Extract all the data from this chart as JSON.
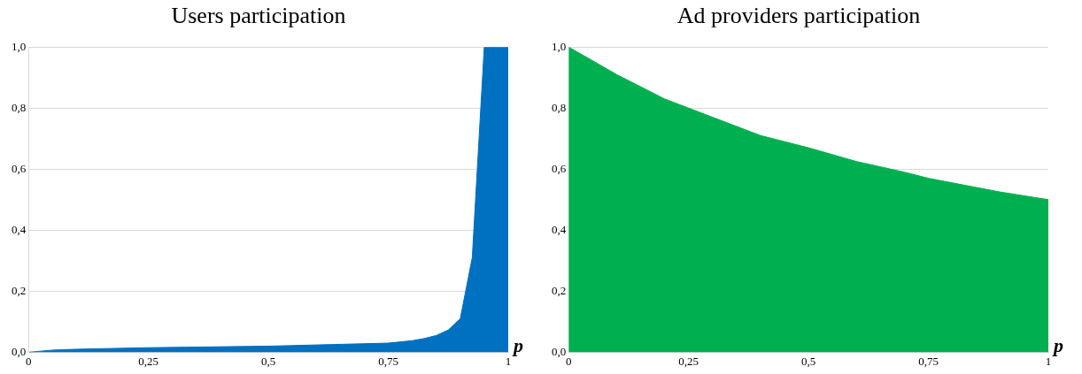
{
  "chart_data": [
    {
      "type": "area",
      "title": "Users participation",
      "xlabel": "p",
      "color": "#0070c0",
      "x": [
        0,
        0.05,
        0.1,
        0.25,
        0.5,
        0.75,
        0.8,
        0.825,
        0.85,
        0.875,
        0.9,
        0.925,
        0.95,
        1
      ],
      "values": [
        0,
        0.007,
        0.01,
        0.015,
        0.02,
        0.03,
        0.038,
        0.045,
        0.055,
        0.073,
        0.11,
        0.31,
        1.0,
        1.0
      ],
      "xlim": [
        0,
        1
      ],
      "ylim": [
        0,
        1
      ],
      "xticks": [
        {
          "value": 0,
          "label": "0"
        },
        {
          "value": 0.25,
          "label": "0,25"
        },
        {
          "value": 0.5,
          "label": "0,5"
        },
        {
          "value": 0.75,
          "label": "0,75"
        },
        {
          "value": 1,
          "label": "1"
        }
      ],
      "yticks": [
        {
          "value": 0,
          "label": "0,0"
        },
        {
          "value": 0.2,
          "label": "0,2"
        },
        {
          "value": 0.4,
          "label": "0,4"
        },
        {
          "value": 0.6,
          "label": "0,6"
        },
        {
          "value": 0.8,
          "label": "0,8"
        },
        {
          "value": 1,
          "label": "1,0"
        }
      ],
      "grid": "y",
      "legend": false
    },
    {
      "type": "area",
      "title": "Ad providers participation",
      "xlabel": "p",
      "color": "#00b050",
      "x": [
        0,
        0.1,
        0.2,
        0.25,
        0.3,
        0.4,
        0.5,
        0.6,
        0.7,
        0.75,
        0.8,
        0.9,
        1
      ],
      "values": [
        1.0,
        0.91,
        0.83,
        0.8,
        0.77,
        0.71,
        0.67,
        0.625,
        0.59,
        0.57,
        0.555,
        0.525,
        0.5
      ],
      "xlim": [
        0,
        1
      ],
      "ylim": [
        0,
        1
      ],
      "xticks": [
        {
          "value": 0,
          "label": "0"
        },
        {
          "value": 0.25,
          "label": "0,25"
        },
        {
          "value": 0.5,
          "label": "0,5"
        },
        {
          "value": 0.75,
          "label": "0,75"
        },
        {
          "value": 1,
          "label": "1"
        }
      ],
      "yticks": [
        {
          "value": 0,
          "label": "0,0"
        },
        {
          "value": 0.2,
          "label": "0,2"
        },
        {
          "value": 0.4,
          "label": "0,4"
        },
        {
          "value": 0.6,
          "label": "0,6"
        },
        {
          "value": 0.8,
          "label": "0,8"
        },
        {
          "value": 1,
          "label": "1,0"
        }
      ],
      "grid": "y",
      "legend": false
    }
  ]
}
